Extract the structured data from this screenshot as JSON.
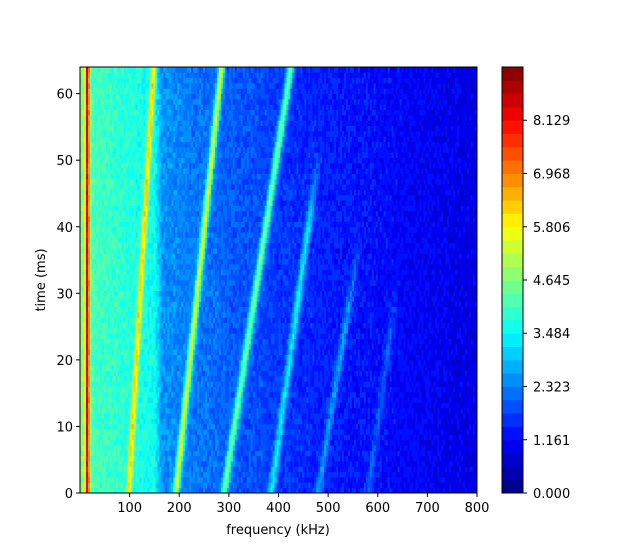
{
  "chart_data": {
    "type": "heatmap",
    "title": "",
    "xlabel": "frequency (kHz)",
    "ylabel": "time (ms)",
    "xlim": [
      0,
      800
    ],
    "ylim": [
      0,
      64
    ],
    "xticks": [
      100,
      200,
      300,
      400,
      500,
      600,
      700,
      800
    ],
    "xtick_labels": [
      "100",
      "200",
      "300",
      "400",
      "500",
      "600",
      "700",
      "800"
    ],
    "yticks": [
      0,
      10,
      20,
      30,
      40,
      50,
      60
    ],
    "ytick_labels": [
      "0",
      "10",
      "20",
      "30",
      "40",
      "50",
      "60"
    ],
    "colorscale": "jet",
    "colorbar": {
      "range": [
        0,
        9.29
      ],
      "ticks": [
        0.0,
        1.161,
        2.323,
        3.484,
        4.645,
        5.806,
        6.968,
        8.129
      ],
      "tick_labels": [
        "0.000",
        "1.161",
        "2.323",
        "3.484",
        "4.645",
        "5.806",
        "6.968",
        "8.129"
      ],
      "levels": 32
    },
    "background_level_by_frequency": [
      {
        "f": 0,
        "v": 4.9
      },
      {
        "f": 30,
        "v": 4.1
      },
      {
        "f": 150,
        "v": 3.6
      },
      {
        "f": 165,
        "v": 2.5
      },
      {
        "f": 300,
        "v": 2.0
      },
      {
        "f": 450,
        "v": 1.5
      },
      {
        "f": 800,
        "v": 0.9
      }
    ],
    "ridges": [
      {
        "name": "",
        "f_at_t0": 15,
        "f_at_t64": 15,
        "peak": 8.6,
        "width_khz": 4
      },
      {
        "name": "",
        "f_at_t0": 98,
        "f_at_t64": 148,
        "peak": 6.2,
        "width_khz": 5
      },
      {
        "name": "",
        "f_at_t0": 193,
        "f_at_t64": 285,
        "peak": 5.5,
        "width_khz": 6
      },
      {
        "name": "",
        "f_at_t0": 290,
        "f_at_t64": 425,
        "peak": 4.6,
        "width_khz": 7
      },
      {
        "name": "",
        "f_at_t0": 385,
        "f_at_t64": 505,
        "peak": 3.4,
        "width_khz": 7,
        "t_end": 40
      },
      {
        "name": "",
        "f_at_t0": 480,
        "f_at_t64": 620,
        "peak": 2.5,
        "width_khz": 7,
        "t_end": 28
      },
      {
        "name": "",
        "f_at_t0": 580,
        "f_at_t64": 700,
        "peak": 2.0,
        "width_khz": 7,
        "t_end": 22
      }
    ]
  }
}
